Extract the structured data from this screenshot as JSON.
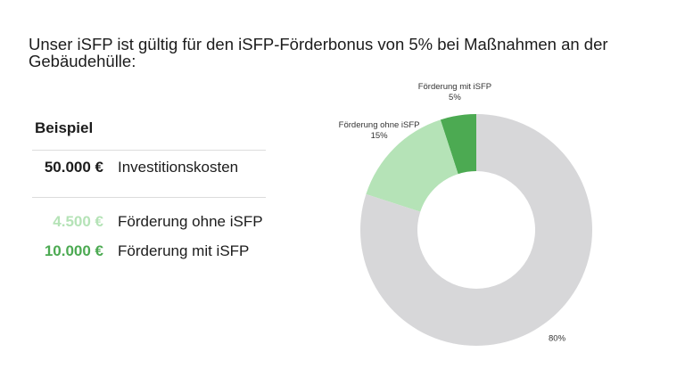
{
  "headline": "Unser iSFP ist gültig für den iSFP-Förderbonus von 5% bei Maßnahmen an der Gebäudehülle:",
  "example": {
    "title": "Beispiel",
    "rows": [
      {
        "amount": "50.000 €",
        "label": "Investitionskosten",
        "color": "#1c1c1c"
      },
      {
        "amount": "4.500 €",
        "label": "Förderung ohne iSFP",
        "color": "#b5e3b7"
      },
      {
        "amount": "10.000 €",
        "label": "Förderung mit iSFP",
        "color": "#4caa52"
      }
    ]
  },
  "chart_data": {
    "type": "pie",
    "donut": true,
    "slices": [
      {
        "label": "Förderung mit iSFP",
        "value_label": "5%",
        "value": 5,
        "color": "#4caa52"
      },
      {
        "label": "Förderung ohne iSFP",
        "value_label": "15%",
        "value": 15,
        "color": "#b5e3b7"
      },
      {
        "label": "",
        "value_label": "80%",
        "value": 80,
        "color": "#d7d7d9"
      }
    ]
  }
}
